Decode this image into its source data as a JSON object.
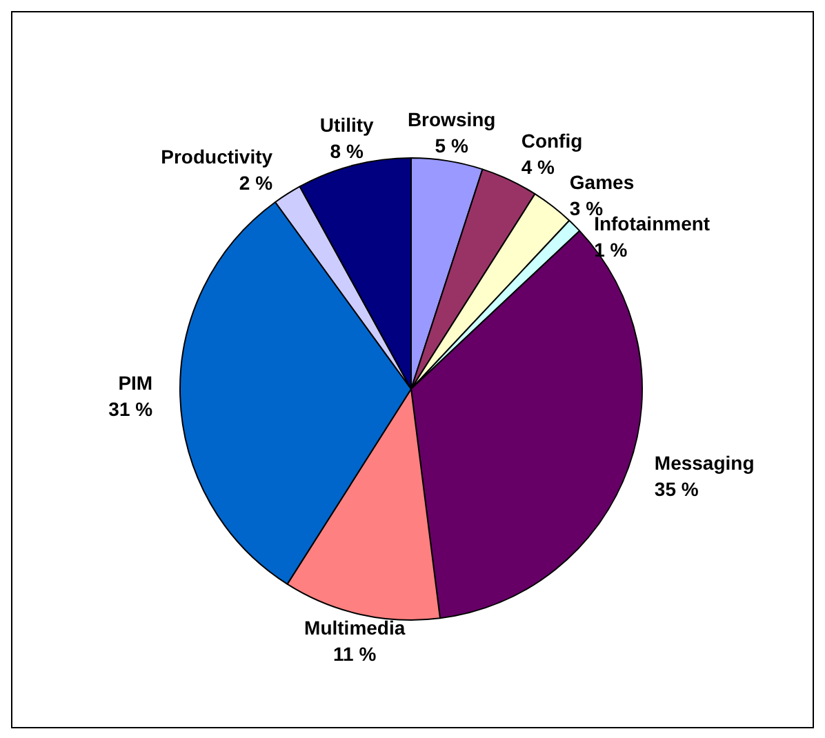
{
  "chart_data": {
    "type": "pie",
    "categories": [
      "Browsing",
      "Config",
      "Games",
      "Infotainment",
      "Messaging",
      "Multimedia",
      "PIM",
      "Productivity",
      "Utility"
    ],
    "values": [
      5,
      4,
      3,
      1,
      35,
      11,
      31,
      2,
      8
    ],
    "value_labels": [
      "5 %",
      "4 %",
      "3 %",
      "1 %",
      "35 %",
      "11 %",
      "31 %",
      "2 %",
      "8 %"
    ],
    "colors": [
      "#9999ff",
      "#993366",
      "#ffffcc",
      "#ccffff",
      "#660066",
      "#ff8080",
      "#0066cc",
      "#ccccff",
      "#000080"
    ],
    "legend": false
  }
}
